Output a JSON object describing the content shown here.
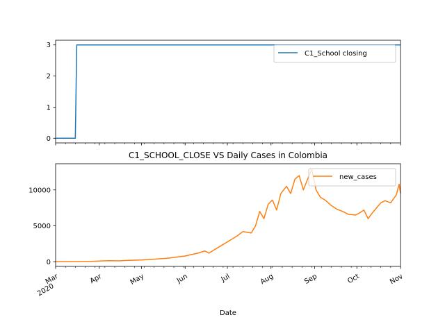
{
  "chart_data": [
    {
      "type": "line",
      "title": "",
      "xlabel": "",
      "ylabel": "",
      "ylim": [
        -0.15,
        3.15
      ],
      "yticks": [
        0,
        1,
        2,
        3
      ],
      "xlim": [
        "2020-03-01",
        "2020-11-01"
      ],
      "grid": false,
      "legend_position": "upper right",
      "series": [
        {
          "name": "C1_School closing",
          "color": "#1f77b4",
          "points": [
            [
              "2020-03-01",
              0
            ],
            [
              "2020-03-15",
              0
            ],
            [
              "2020-03-16",
              3
            ],
            [
              "2020-11-01",
              3
            ]
          ]
        }
      ]
    },
    {
      "type": "line",
      "title": "C1_SCHOOL_CLOSE VS Daily Cases in Colombia",
      "xlabel": "Date",
      "ylabel": "",
      "ylim": [
        -650,
        13650
      ],
      "yticks": [
        0,
        5000,
        10000
      ],
      "ytick_labels": [
        "0",
        "5000",
        "10000"
      ],
      "xlim": [
        "2020-03-01",
        "2020-11-01"
      ],
      "xticks": [
        {
          "date": "2020-03-01",
          "label": "Mar",
          "sublabel": "2020"
        },
        {
          "date": "2020-04-01",
          "label": "Apr"
        },
        {
          "date": "2020-05-01",
          "label": "May"
        },
        {
          "date": "2020-06-01",
          "label": "Jun"
        },
        {
          "date": "2020-07-01",
          "label": "Jul"
        },
        {
          "date": "2020-08-01",
          "label": "Aug"
        },
        {
          "date": "2020-09-01",
          "label": "Sep"
        },
        {
          "date": "2020-10-01",
          "label": "Oct"
        },
        {
          "date": "2020-11-01",
          "label": "Nov"
        }
      ],
      "grid": false,
      "legend_position": "upper right",
      "series": [
        {
          "name": "new_cases",
          "color": "#ff7f0e",
          "points": [
            [
              "2020-03-01",
              0
            ],
            [
              "2020-03-15",
              10
            ],
            [
              "2020-03-25",
              40
            ],
            [
              "2020-04-01",
              100
            ],
            [
              "2020-04-08",
              150
            ],
            [
              "2020-04-15",
              120
            ],
            [
              "2020-04-22",
              200
            ],
            [
              "2020-05-01",
              250
            ],
            [
              "2020-05-10",
              350
            ],
            [
              "2020-05-20",
              500
            ],
            [
              "2020-06-01",
              800
            ],
            [
              "2020-06-10",
              1200
            ],
            [
              "2020-06-15",
              1500
            ],
            [
              "2020-06-18",
              1200
            ],
            [
              "2020-06-22",
              1700
            ],
            [
              "2020-06-28",
              2400
            ],
            [
              "2020-07-03",
              3000
            ],
            [
              "2020-07-08",
              3600
            ],
            [
              "2020-07-12",
              4200
            ],
            [
              "2020-07-18",
              4000
            ],
            [
              "2020-07-21",
              5000
            ],
            [
              "2020-07-24",
              7000
            ],
            [
              "2020-07-27",
              6000
            ],
            [
              "2020-07-30",
              8000
            ],
            [
              "2020-08-02",
              8600
            ],
            [
              "2020-08-05",
              7200
            ],
            [
              "2020-08-08",
              9500
            ],
            [
              "2020-08-12",
              10500
            ],
            [
              "2020-08-15",
              9500
            ],
            [
              "2020-08-18",
              11500
            ],
            [
              "2020-08-21",
              12000
            ],
            [
              "2020-08-24",
              10000
            ],
            [
              "2020-08-27",
              11500
            ],
            [
              "2020-08-30",
              12900
            ],
            [
              "2020-09-02",
              10000
            ],
            [
              "2020-09-05",
              9000
            ],
            [
              "2020-09-09",
              8500
            ],
            [
              "2020-09-13",
              7800
            ],
            [
              "2020-09-17",
              7300
            ],
            [
              "2020-09-21",
              7000
            ],
            [
              "2020-09-25",
              6600
            ],
            [
              "2020-09-30",
              6500
            ],
            [
              "2020-10-03",
              6800
            ],
            [
              "2020-10-06",
              7200
            ],
            [
              "2020-10-09",
              6000
            ],
            [
              "2020-10-12",
              6800
            ],
            [
              "2020-10-15",
              7500
            ],
            [
              "2020-10-18",
              8200
            ],
            [
              "2020-10-21",
              8500
            ],
            [
              "2020-10-25",
              8200
            ],
            [
              "2020-10-29",
              9300
            ],
            [
              "2020-10-31",
              10800
            ],
            [
              "2020-11-01",
              9500
            ]
          ]
        }
      ]
    }
  ]
}
